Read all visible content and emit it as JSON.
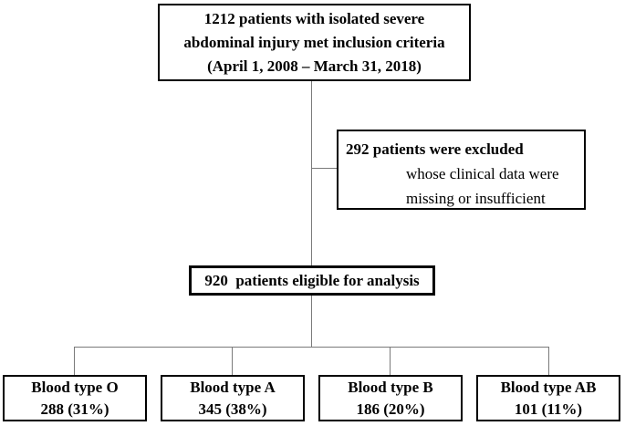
{
  "figure": {
    "type": "patient-flow-diagram",
    "colors": {
      "background": "#ffffff",
      "box_border": "#000000",
      "connector_line": "#7a7a7a",
      "text": "#000000"
    }
  },
  "nodes": {
    "inclusion": {
      "lines": [
        "1212 patients with isolated severe",
        "abdominal injury met inclusion criteria",
        "(April 1, 2008 – March 31, 2018)"
      ]
    },
    "excluded": {
      "title": "292 patients were excluded",
      "details": [
        "whose clinical data were",
        "missing or insufficient"
      ]
    },
    "eligible": {
      "label": "920  patients eligible for analysis"
    },
    "blood_types": [
      {
        "label": "Blood type O",
        "value": "288 (31%)"
      },
      {
        "label": "Blood type A",
        "value": "345 (38%)"
      },
      {
        "label": "Blood type B",
        "value": "186 (20%)"
      },
      {
        "label": "Blood type AB",
        "value": "101 (11%)"
      }
    ]
  }
}
